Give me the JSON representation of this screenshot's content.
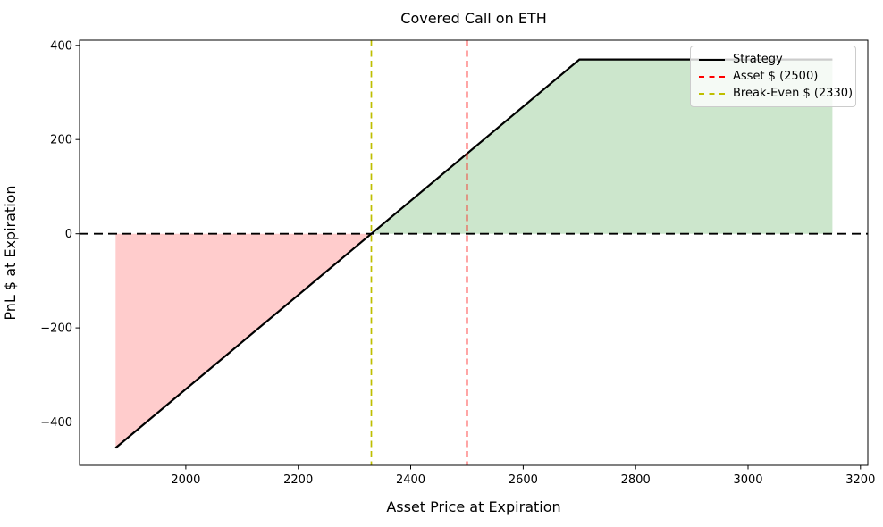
{
  "chart_data": {
    "type": "line",
    "title": "Covered Call on ETH",
    "xlabel": "Asset Price at Expiration",
    "ylabel": "PnL $ at Expiration",
    "xlim": [
      1811,
      3213
    ],
    "ylim": [
      -492,
      411
    ],
    "x_ticks": [
      2000,
      2200,
      2400,
      2600,
      2800,
      3000,
      3200
    ],
    "y_ticks": [
      -400,
      -200,
      0,
      200,
      400
    ],
    "grid": false,
    "series": [
      {
        "name": "Strategy",
        "color": "#000000",
        "line_style": "solid",
        "points": [
          [
            1875,
            -455
          ],
          [
            2330,
            0
          ],
          [
            2700,
            370
          ],
          [
            3150,
            370
          ]
        ]
      }
    ],
    "reference_lines": [
      {
        "name": "zero-pnl",
        "orientation": "horizontal",
        "value": 0,
        "color": "#000000",
        "line_style": "dashed"
      },
      {
        "name": "asset-price",
        "orientation": "vertical",
        "value": 2500,
        "color": "#ff0000",
        "line_style": "dashed"
      },
      {
        "name": "break-even",
        "orientation": "vertical",
        "value": 2330,
        "color": "#bfbf00",
        "line_style": "dashed"
      }
    ],
    "fills": [
      {
        "name": "loss-region",
        "color": "rgba(255,0,0,0.2)",
        "points": [
          [
            1875,
            0
          ],
          [
            2330,
            0
          ],
          [
            1875,
            -455
          ]
        ]
      },
      {
        "name": "profit-region",
        "color": "rgba(0,128,0,0.2)",
        "points": [
          [
            2330,
            0
          ],
          [
            2700,
            370
          ],
          [
            3150,
            370
          ],
          [
            3150,
            0
          ]
        ]
      }
    ],
    "legend": {
      "position": "top-right",
      "items": [
        {
          "label": "Strategy",
          "color": "#000000",
          "line_style": "solid"
        },
        {
          "label": "Asset $ (2500)",
          "color": "#ff0000",
          "line_style": "dashed"
        },
        {
          "label": "Break-Even $ (2330)",
          "color": "#bfbf00",
          "line_style": "dashed"
        }
      ]
    }
  }
}
